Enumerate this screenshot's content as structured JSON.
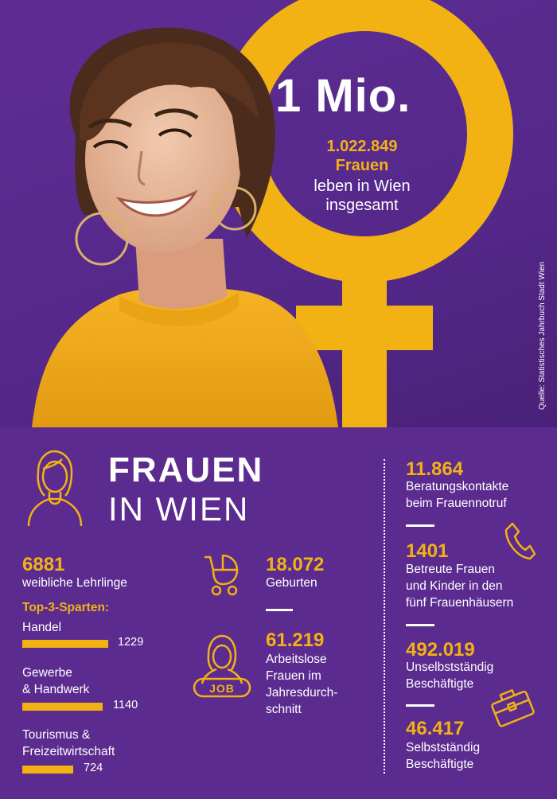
{
  "hero": {
    "big_title": "1 Mio.",
    "number": "1.022.849",
    "number_label": "Frauen",
    "description_line1": "leben in Wien",
    "description_line2": "insgesamt",
    "source": "Quelle: Statistisches Jahrbuch Stadt Wien"
  },
  "heading": {
    "line1": "FRAUEN",
    "line2": "IN WIEN"
  },
  "apprentices": {
    "number": "6881",
    "label": "weibliche Lehrlinge",
    "top3_label": "Top-3-Sparten:",
    "sectors": [
      {
        "label_line1": "Handel",
        "label_line2": "",
        "value": 1229
      },
      {
        "label_line1": "Gewerbe",
        "label_line2": "& Handwerk",
        "value": 1140
      },
      {
        "label_line1": "Tourismus &",
        "label_line2": "Freizeitwirtschaft",
        "value": 724
      }
    ]
  },
  "births": {
    "number": "18.072",
    "label": "Geburten"
  },
  "unemployed": {
    "number": "61.219",
    "label_lines": [
      "Arbeitslose",
      "Frauen im",
      "Jahresdurch-",
      "schnitt"
    ],
    "icon_text": "JOB"
  },
  "right_stats": [
    {
      "number": "11.864",
      "lines": [
        "Beratungskontakte",
        "beim Frauennotruf"
      ]
    },
    {
      "number": "1401",
      "lines": [
        "Betreute Frauen",
        "und Kinder in den",
        "fünf Frauenhäusern"
      ]
    },
    {
      "number": "492.019",
      "lines": [
        "Unselbstständig",
        "Beschäftigte"
      ]
    },
    {
      "number": "46.417",
      "lines": [
        "Selbstständig",
        "Beschäftigte"
      ]
    }
  ],
  "colors": {
    "purple": "#5b2b8f",
    "yellow": "#f2b214",
    "white": "#ffffff"
  },
  "icons": [
    "venus-symbol",
    "woman-outline-icon",
    "stroller-icon",
    "job-seeker-icon",
    "phone-icon",
    "briefcase-icon"
  ]
}
